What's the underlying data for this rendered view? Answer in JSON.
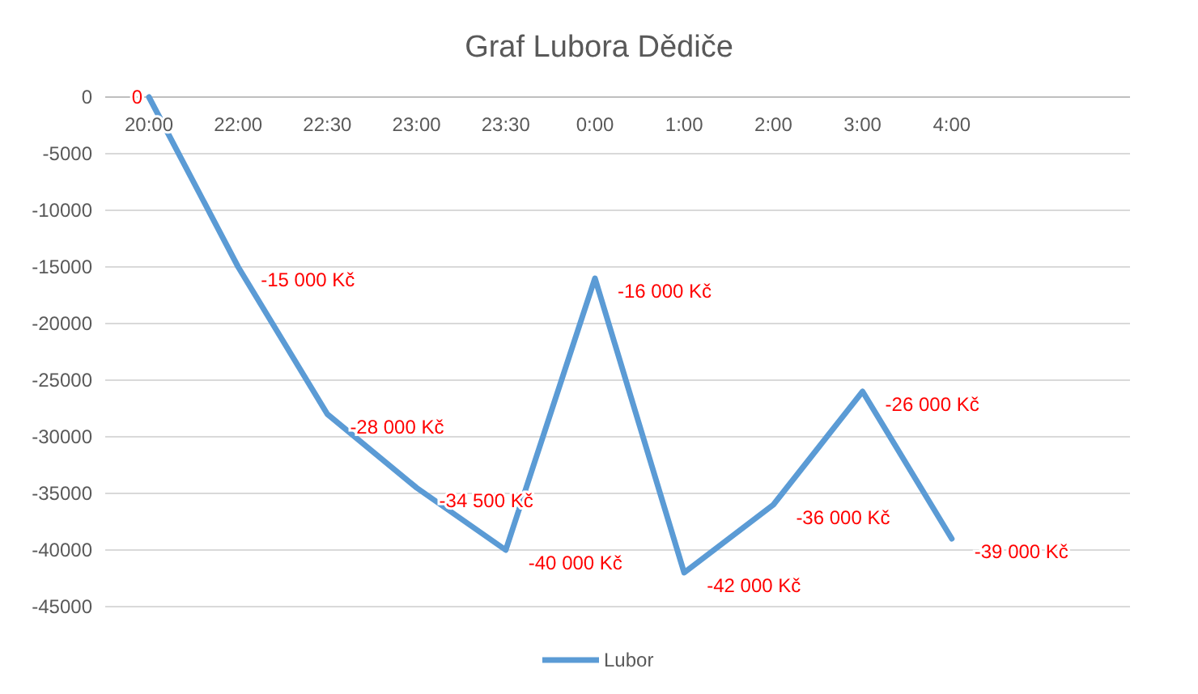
{
  "chart_data": {
    "type": "line",
    "title": "Graf Lubora Dědiče",
    "categories": [
      "20:00",
      "22:00",
      "22:30",
      "23:00",
      "23:30",
      "0:00",
      "1:00",
      "2:00",
      "3:00",
      "4:00"
    ],
    "series": [
      {
        "name": "Lubor",
        "color": "#5b9bd5",
        "values": [
          0,
          -15000,
          -28000,
          -34500,
          -40000,
          -16000,
          -42000,
          -36000,
          -26000,
          -39000
        ],
        "value_labels": [
          "0",
          "-15 000 Kč",
          "-28 000 Kč",
          "-34 500 Kč",
          "-40 000 Kč",
          "-16 000 Kč",
          "-42 000 Kč",
          "-36 000 Kč",
          "-26 000 Kč",
          "-39 000 Kč"
        ]
      }
    ],
    "ylim": [
      -45000,
      0
    ],
    "yticks": [
      0,
      -5000,
      -10000,
      -15000,
      -20000,
      -25000,
      -30000,
      -35000,
      -40000,
      -45000
    ],
    "grid": "y",
    "legend": "bottom",
    "marker": "none",
    "line_style": "solid"
  }
}
